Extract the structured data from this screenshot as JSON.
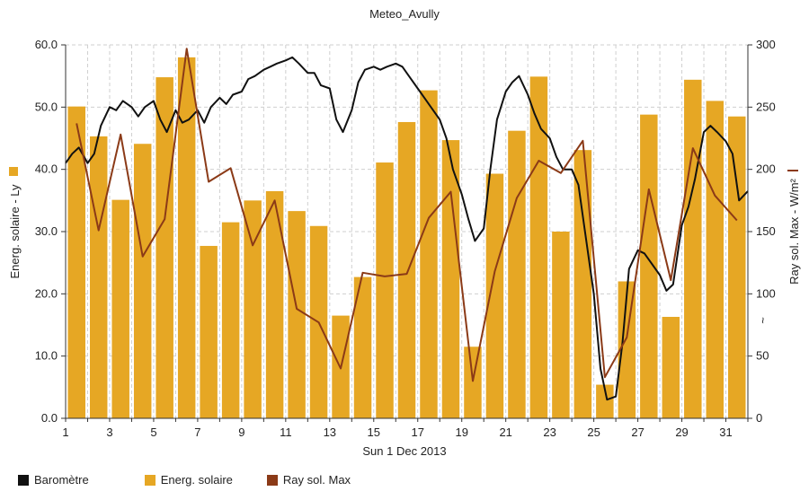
{
  "title": "Meteo_Avully",
  "chart_data": {
    "type": "bar+line",
    "title": "Meteo_Avully",
    "xlabel": "Sun 1 Dec 2013",
    "ylabel_left": "Energ. solaire - Ly",
    "ylabel_right": "Ray sol. Max - W/m²",
    "right_axis_mark": "~",
    "x_ticks": [
      1,
      3,
      5,
      7,
      9,
      11,
      13,
      15,
      17,
      19,
      21,
      23,
      25,
      27,
      29,
      31
    ],
    "xlim": [
      1,
      32
    ],
    "ylim_left": [
      0,
      60
    ],
    "yticks_left": [
      "0.0",
      "10.0",
      "20.0",
      "30.0",
      "40.0",
      "50.0",
      "60.0"
    ],
    "ylim_right": [
      0,
      300
    ],
    "yticks_right": [
      "0",
      "50",
      "100",
      "150",
      "200",
      "250",
      "300"
    ],
    "grid": true,
    "legend_position": "bottom-left",
    "days": [
      1,
      2,
      3,
      4,
      5,
      6,
      7,
      8,
      9,
      10,
      11,
      12,
      13,
      14,
      15,
      16,
      17,
      18,
      19,
      20,
      21,
      22,
      23,
      24,
      25,
      26,
      27,
      28,
      29,
      30,
      31
    ],
    "series": [
      {
        "name": "Energ. solaire",
        "type": "bar",
        "axis": "left",
        "color": "#e6a724",
        "values": [
          50.1,
          45.3,
          35.1,
          44.1,
          54.8,
          58.0,
          27.7,
          31.5,
          35.0,
          36.5,
          33.3,
          30.9,
          16.5,
          22.7,
          41.1,
          47.6,
          52.7,
          44.7,
          11.5,
          39.3,
          46.2,
          54.9,
          30.0,
          43.1,
          5.4,
          22.0,
          48.8,
          16.3,
          54.4,
          51.0,
          48.5
        ]
      },
      {
        "name": "Ray sol. Max",
        "type": "line",
        "axis": "right",
        "color": "#8b3a17",
        "x": [
          1.5,
          2.5,
          3.5,
          4.5,
          5.5,
          6.5,
          7.5,
          8.5,
          9.5,
          10.5,
          11.5,
          12.5,
          13.5,
          14.5,
          15.5,
          16.5,
          17.5,
          18.5,
          19.5,
          20.5,
          21.5,
          22.5,
          23.5,
          24.5,
          25.5,
          26.5,
          27.5,
          28.5,
          29.5,
          30.5,
          31.5
        ],
        "values": [
          237,
          151,
          228,
          130,
          160,
          297,
          190,
          201,
          139,
          175,
          88,
          77,
          40,
          117,
          114,
          116,
          161,
          182,
          30,
          118,
          177,
          207,
          197,
          223,
          33,
          65,
          184,
          111,
          217,
          179,
          159
        ]
      },
      {
        "name": "Baromètre",
        "type": "line",
        "axis": "left",
        "color": "#111111",
        "x": [
          1.0,
          1.3,
          1.6,
          2.0,
          2.3,
          2.6,
          3.0,
          3.3,
          3.6,
          4.0,
          4.3,
          4.6,
          5.0,
          5.3,
          5.6,
          6.0,
          6.3,
          6.6,
          7.0,
          7.3,
          7.6,
          8.0,
          8.3,
          8.6,
          9.0,
          9.3,
          9.6,
          10.0,
          10.3,
          10.6,
          11.0,
          11.3,
          11.6,
          12.0,
          12.3,
          12.6,
          13.0,
          13.3,
          13.6,
          14.0,
          14.3,
          14.6,
          15.0,
          15.3,
          15.6,
          16.0,
          16.3,
          16.6,
          17.0,
          17.3,
          17.6,
          18.0,
          18.3,
          18.6,
          19.0,
          19.3,
          19.6,
          20.0,
          20.3,
          20.6,
          21.0,
          21.3,
          21.6,
          22.0,
          22.3,
          22.6,
          23.0,
          23.3,
          23.6,
          24.0,
          24.3,
          24.6,
          25.0,
          25.3,
          25.6,
          26.0,
          26.3,
          26.6,
          27.0,
          27.3,
          27.6,
          28.0,
          28.3,
          28.6,
          29.0,
          29.3,
          29.6,
          30.0,
          30.3,
          30.6,
          31.0,
          31.3,
          31.6,
          32.0
        ],
        "values": [
          41.0,
          42.5,
          43.5,
          41.0,
          42.5,
          47.0,
          50.0,
          49.5,
          51.0,
          50.0,
          48.5,
          50.0,
          51.0,
          48.0,
          46.0,
          49.5,
          47.5,
          48.0,
          49.5,
          47.5,
          50.0,
          51.5,
          50.5,
          52.0,
          52.5,
          54.5,
          55.0,
          56.0,
          56.5,
          57.0,
          57.5,
          58.0,
          57.0,
          55.5,
          55.5,
          53.5,
          53.0,
          48.0,
          46.0,
          49.5,
          54.0,
          56.0,
          56.5,
          56.0,
          56.5,
          57.0,
          56.5,
          55.0,
          53.0,
          51.5,
          50.0,
          48.0,
          45.0,
          40.0,
          36.0,
          32.0,
          28.5,
          30.5,
          40.0,
          48.0,
          52.5,
          54.0,
          55.0,
          52.0,
          49.0,
          46.5,
          45.0,
          42.0,
          40.0,
          40.0,
          37.5,
          30.0,
          20.0,
          8.0,
          3.0,
          3.5,
          12.0,
          24.0,
          27.0,
          26.5,
          25.0,
          23.0,
          20.5,
          21.5,
          31.0,
          34.0,
          38.5,
          46.0,
          47.0,
          46.0,
          44.5,
          42.5,
          35.0,
          36.5
        ]
      }
    ]
  },
  "legend": [
    {
      "label": "Baromètre",
      "color": "#111111"
    },
    {
      "label": "Energ. solaire",
      "color": "#e6a724"
    },
    {
      "label": "Ray sol. Max",
      "color": "#8b3a17"
    }
  ]
}
